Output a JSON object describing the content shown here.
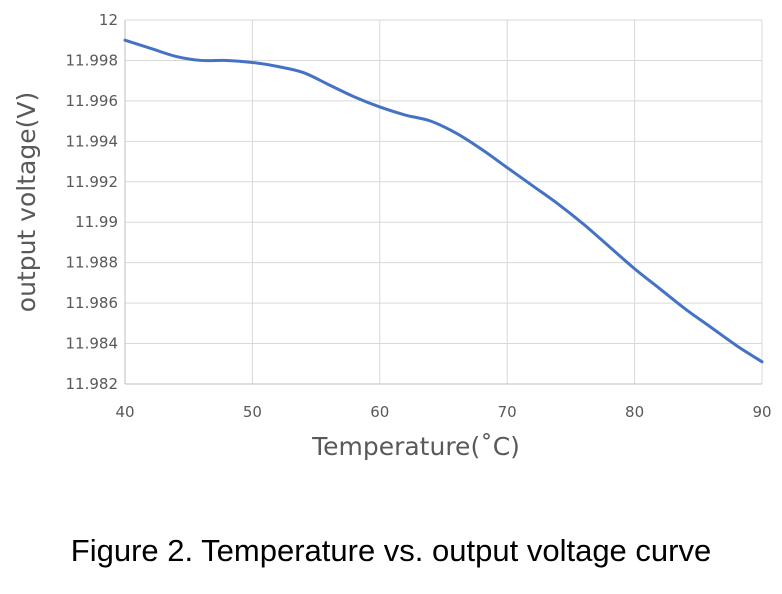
{
  "chart_data": {
    "type": "line",
    "xlabel": "Temperature(˚C)",
    "ylabel": "output voltage(V)",
    "xlim": [
      40,
      90
    ],
    "ylim": [
      11.982,
      12
    ],
    "x_ticks": [
      "40",
      "50",
      "60",
      "70",
      "80",
      "90"
    ],
    "y_ticks": [
      "11.982",
      "11.984",
      "11.986",
      "11.988",
      "11.99",
      "11.992",
      "11.994",
      "11.996",
      "11.998",
      "12"
    ],
    "grid": true,
    "legend": "none",
    "series": [
      {
        "color": "#4472C4",
        "x": [
          40,
          42,
          44,
          46,
          48,
          50,
          52,
          54,
          56,
          58,
          60,
          62,
          64,
          66,
          68,
          70,
          72,
          74,
          76,
          78,
          80,
          82,
          84,
          86,
          88,
          90
        ],
        "y": [
          11.999,
          11.9986,
          11.9982,
          11.998,
          11.998,
          11.9979,
          11.9977,
          11.9974,
          11.9968,
          11.9962,
          11.9957,
          11.9953,
          11.995,
          11.9944,
          11.9936,
          11.9927,
          11.9918,
          11.9909,
          11.9899,
          11.9888,
          11.9877,
          11.9867,
          11.9857,
          11.9848,
          11.9839,
          11.9831
        ]
      }
    ]
  },
  "caption": "Figure 2. Temperature vs. output voltage curve"
}
